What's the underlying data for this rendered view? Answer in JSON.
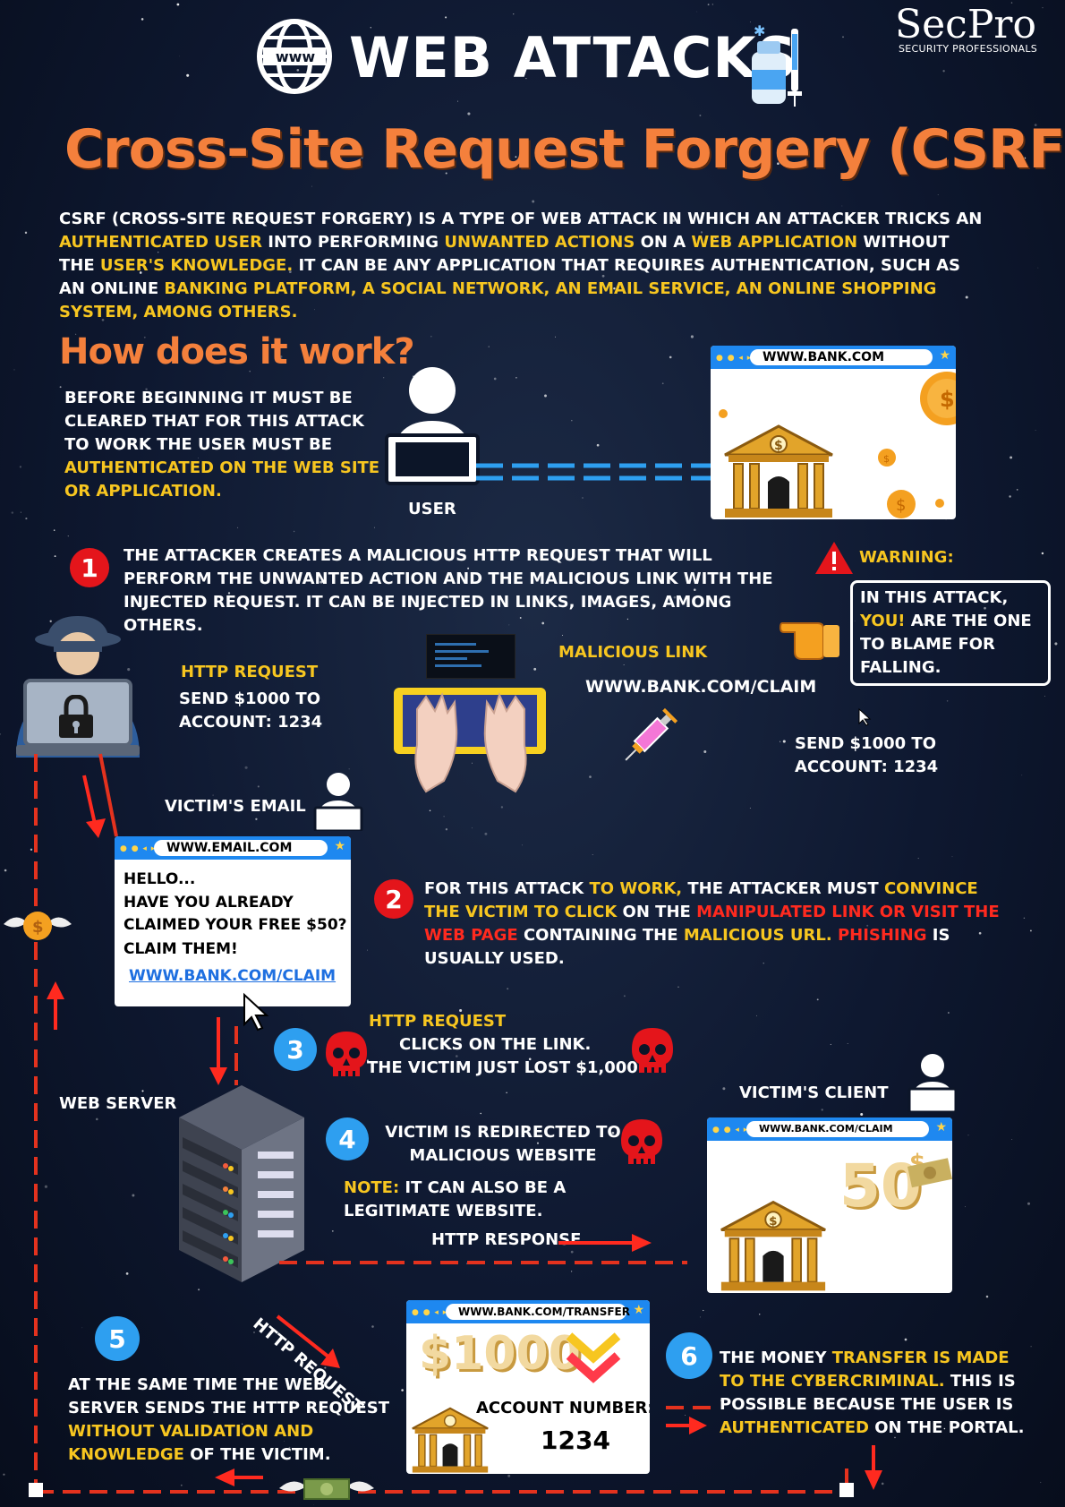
{
  "header": {
    "title": "WEB ATTACKS",
    "globe_label": "www",
    "brand": "SecPro",
    "brand_sub": "SECURITY PROFESSIONALS"
  },
  "headline": "Cross-Site Request Forgery (CSRF)",
  "intro": [
    {
      "t": "CSRF (CROSS-SITE REQUEST FORGERY) IS A TYPE OF WEB ATTACK IN WHICH AN ATTACKER TRICKS AN ",
      "c": "w"
    },
    {
      "t": "AUTHENTICATED USER",
      "c": "y"
    },
    {
      "t": " INTO PERFORMING ",
      "c": "w"
    },
    {
      "t": "UNWANTED ACTIONS",
      "c": "y"
    },
    {
      "t": " ON A ",
      "c": "w"
    },
    {
      "t": "WEB APPLICATION",
      "c": "y"
    },
    {
      "t": " WITHOUT THE ",
      "c": "w"
    },
    {
      "t": "USER'S KNOWLEDGE.",
      "c": "y"
    },
    {
      "t": " IT CAN BE ANY APPLICATION THAT REQUIRES AUTHENTICATION, SUCH AS AN ONLINE ",
      "c": "w"
    },
    {
      "t": "BANKING PLATFORM, A SOCIAL NETWORK, AN EMAIL SERVICE, AN ONLINE SHOPPING SYSTEM, AMONG OTHERS.",
      "c": "y"
    }
  ],
  "how": {
    "heading": "How does it work?",
    "text": [
      {
        "t": "BEFORE BEGINNING IT MUST BE CLEARED THAT FOR THIS ATTACK TO WORK THE USER MUST BE ",
        "c": "w"
      },
      {
        "t": "AUTHENTICATED ON THE WEB SITE OR APPLICATION.",
        "c": "y"
      }
    ],
    "user_label": "USER",
    "bank_url": "WWW.BANK.COM"
  },
  "step1": {
    "num": "1",
    "text": "THE ATTACKER CREATES A MALICIOUS HTTP REQUEST THAT WILL PERFORM THE UNWANTED ACTION AND THE MALICIOUS LINK WITH THE INJECTED REQUEST. IT CAN BE INJECTED IN LINKS, IMAGES, AMONG OTHERS.",
    "http_request_label": "HTTP REQUEST",
    "http_request_text": "SEND $1000 TO ACCOUNT: 1234",
    "malicious_link_label": "MALICIOUS LINK",
    "malicious_link_url": "WWW.BANK.COM/CLAIM",
    "malicious_link_text": "SEND $1000 TO ACCOUNT: 1234"
  },
  "warning": {
    "label": "WARNING:",
    "text": [
      {
        "t": "IN THIS ATTACK, ",
        "c": "w"
      },
      {
        "t": "YOU!",
        "c": "y"
      },
      {
        "t": " ARE THE ONE TO BLAME FOR FALLING.",
        "c": "w"
      }
    ]
  },
  "email": {
    "label": "VICTIM'S EMAIL",
    "url": "WWW.EMAIL.COM",
    "line1": "HELLO...",
    "line2": "HAVE YOU ALREADY CLAIMED YOUR FREE $50?",
    "line3": "CLAIM THEM!",
    "link": "WWW.BANK.COM/CLAIM"
  },
  "step2": {
    "num": "2",
    "text": [
      {
        "t": "FOR THIS ATTACK ",
        "c": "w"
      },
      {
        "t": "TO WORK,",
        "c": "y"
      },
      {
        "t": " THE ATTACKER MUST ",
        "c": "w"
      },
      {
        "t": "CONVINCE THE VICTIM TO CLICK",
        "c": "y"
      },
      {
        "t": " ON THE ",
        "c": "w"
      },
      {
        "t": "MANIPULATED LINK OR VISIT THE WEB PAGE",
        "c": "r"
      },
      {
        "t": " CONTAINING THE ",
        "c": "w"
      },
      {
        "t": "MALICIOUS URL.",
        "c": "y"
      },
      {
        "t": " ",
        "c": "w"
      },
      {
        "t": "PHISHING",
        "c": "r"
      },
      {
        "t": " IS USUALLY USED.",
        "c": "w"
      }
    ]
  },
  "step3": {
    "num": "3",
    "label": "HTTP REQUEST",
    "line1": "CLICKS ON THE LINK.",
    "line2": "THE VICTIM JUST LOST $1,000"
  },
  "server_label": "WEB SERVER",
  "step4": {
    "num": "4",
    "line1": "VICTIM IS REDIRECTED TO MALICIOUS WEBSITE",
    "note_label": "NOTE:",
    "note_text": " IT CAN ALSO BE A LEGITIMATE WEBSITE.",
    "http_response": "HTTP RESPONSE"
  },
  "client": {
    "label": "VICTIM'S CLIENT",
    "url": "WWW.BANK.COM/CLAIM",
    "amount": "50",
    "currency": "$"
  },
  "diag_label": "HTTP REQUEST",
  "transfer": {
    "url": "WWW.BANK.COM/TRANSFER",
    "amount": "$1000",
    "account_label": "ACCOUNT NUMBER:",
    "account": "1234"
  },
  "step5": {
    "num": "5",
    "text": [
      {
        "t": "AT THE SAME TIME THE WEB SERVER SENDS THE HTTP REQUEST ",
        "c": "w"
      },
      {
        "t": "WITHOUT VALIDATION AND KNOWLEDGE",
        "c": "y"
      },
      {
        "t": " OF THE VICTIM.",
        "c": "w"
      }
    ]
  },
  "step6": {
    "num": "6",
    "text": [
      {
        "t": "THE MONEY ",
        "c": "w"
      },
      {
        "t": "TRANSFER IS MADE TO THE CYBERCRIMINAL.",
        "c": "y"
      },
      {
        "t": " THIS IS POSSIBLE BECAUSE THE USER IS ",
        "c": "w"
      },
      {
        "t": "AUTHENTICATED",
        "c": "y"
      },
      {
        "t": " ON THE PORTAL.",
        "c": "w"
      }
    ]
  },
  "colors": {
    "accent_orange": "#f4803c",
    "highlight_yellow": "#f7c620",
    "alert_red": "#ff2a1f",
    "step_red": "#e4151b",
    "step_blue": "#2e9ff0",
    "browser_bar": "#1e88f0",
    "background": "#0c1528"
  },
  "icons": [
    "globe-icon",
    "vaccine-icon",
    "user-laptop-icon",
    "bank-icon",
    "coin-icon",
    "warning-icon",
    "pointing-hand-icon",
    "hacker-icon",
    "padlock-icon",
    "terminal-icon",
    "keyboard-icon",
    "hands-icon",
    "syringe-icon",
    "mouse-cursor-icon",
    "skull-icon",
    "server-icon",
    "winged-coin-icon",
    "winged-banknote-icon",
    "check-chevron-icon",
    "arrow-icon"
  ]
}
